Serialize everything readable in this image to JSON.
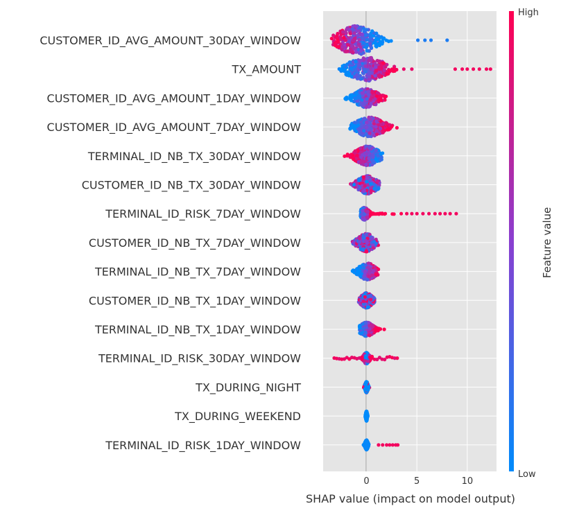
{
  "chart_data": {
    "type": "scatter",
    "subtype": "shap-beeswarm",
    "xlabel": "SHAP value (impact on model output)",
    "xlim": [
      -4.3,
      12.9
    ],
    "xticks": [
      0,
      5,
      10
    ],
    "xtick_labels": [
      "0",
      "5",
      "10"
    ],
    "grid": true,
    "colorbar": {
      "title": "Feature value",
      "high_label": "High",
      "low_label": "Low",
      "low_color": "#008bfb",
      "mid_color": "#8a3fd0",
      "high_color": "#ff0052"
    },
    "background_color": "#e5e5e5",
    "features": [
      {
        "name": "CUSTOMER_ID_AVG_AMOUNT_30DAY_WINDOW",
        "range": [
          -3.5,
          4.2
        ],
        "peak": -1.0,
        "spread": 1.3,
        "peak_width": 21,
        "outliers": [
          {
            "x": 5.1,
            "v": 0.1
          },
          {
            "x": 5.8,
            "v": 0.1
          },
          {
            "x": 6.4,
            "v": 0.1
          },
          {
            "x": 8.0,
            "v": 0.1
          }
        ],
        "trend": "high-negative"
      },
      {
        "name": "TX_AMOUNT",
        "range": [
          -2.8,
          4.5
        ],
        "peak": 0.0,
        "spread": 1.3,
        "peak_width": 17,
        "outliers": [
          {
            "x": 3.7,
            "v": 0.9
          },
          {
            "x": 4.5,
            "v": 0.9
          },
          {
            "x": 8.8,
            "v": 0.95
          },
          {
            "x": 9.5,
            "v": 0.95
          },
          {
            "x": 10.0,
            "v": 0.95
          },
          {
            "x": 10.6,
            "v": 0.95
          },
          {
            "x": 11.2,
            "v": 0.95
          },
          {
            "x": 11.9,
            "v": 0.95
          },
          {
            "x": 12.3,
            "v": 0.95
          }
        ],
        "trend": "high-positive"
      },
      {
        "name": "CUSTOMER_ID_AVG_AMOUNT_1DAY_WINDOW",
        "range": [
          -3.4,
          2.0
        ],
        "peak": 0.0,
        "spread": 0.8,
        "peak_width": 14,
        "outliers": [],
        "trend": "high-positive"
      },
      {
        "name": "CUSTOMER_ID_AVG_AMOUNT_7DAY_WINDOW",
        "range": [
          -1.7,
          3.4
        ],
        "peak": 0.3,
        "spread": 1.0,
        "peak_width": 14,
        "outliers": [],
        "trend": "high-positive"
      },
      {
        "name": "TERMINAL_ID_NB_TX_30DAY_WINDOW",
        "range": [
          -2.2,
          1.6
        ],
        "peak": 0.1,
        "spread": 0.8,
        "peak_width": 14,
        "outliers": [],
        "trend": "high-negative"
      },
      {
        "name": "CUSTOMER_ID_NB_TX_30DAY_WINDOW",
        "range": [
          -1.6,
          1.3
        ],
        "peak": 0.1,
        "spread": 0.7,
        "peak_width": 13,
        "outliers": [],
        "trend": "mixed"
      },
      {
        "name": "TERMINAL_ID_RISK_7DAY_WINDOW",
        "range": [
          -0.6,
          3.5
        ],
        "peak": -0.2,
        "spread": 0.3,
        "peak_width": 9,
        "outliers": [
          {
            "x": 4.0,
            "v": 0.95
          },
          {
            "x": 4.5,
            "v": 0.95
          },
          {
            "x": 5.0,
            "v": 0.95
          },
          {
            "x": 5.6,
            "v": 0.95
          },
          {
            "x": 6.2,
            "v": 0.95
          },
          {
            "x": 6.8,
            "v": 0.95
          },
          {
            "x": 7.3,
            "v": 0.95
          },
          {
            "x": 7.8,
            "v": 0.95
          },
          {
            "x": 8.3,
            "v": 0.95
          },
          {
            "x": 8.9,
            "v": 0.95
          }
        ],
        "trend": "high-positive"
      },
      {
        "name": "CUSTOMER_ID_NB_TX_7DAY_WINDOW",
        "range": [
          -1.4,
          1.2
        ],
        "peak": 0.0,
        "spread": 0.6,
        "peak_width": 13,
        "outliers": [],
        "trend": "mixed"
      },
      {
        "name": "TERMINAL_ID_NB_TX_7DAY_WINDOW",
        "range": [
          -1.6,
          1.2
        ],
        "peak": 0.1,
        "spread": 0.6,
        "peak_width": 12,
        "outliers": [],
        "trend": "high-positive"
      },
      {
        "name": "CUSTOMER_ID_NB_TX_1DAY_WINDOW",
        "range": [
          -0.8,
          0.8
        ],
        "peak": 0.0,
        "spread": 0.4,
        "peak_width": 11,
        "outliers": [],
        "trend": "mixed"
      },
      {
        "name": "TERMINAL_ID_NB_TX_1DAY_WINDOW",
        "range": [
          -0.7,
          1.8
        ],
        "peak": 0.0,
        "spread": 0.5,
        "peak_width": 10,
        "outliers": [],
        "trend": "high-positive"
      },
      {
        "name": "TERMINAL_ID_RISK_30DAY_WINDOW",
        "range": [
          -3.2,
          3.2
        ],
        "peak": 0.0,
        "spread": 0.2,
        "peak_width": 8,
        "outliers": [],
        "trend": "high-spread"
      },
      {
        "name": "TX_DURING_NIGHT",
        "range": [
          -0.8,
          0.5
        ],
        "peak": 0.0,
        "spread": 0.1,
        "peak_width": 8,
        "outliers": [],
        "trend": "binary"
      },
      {
        "name": "TX_DURING_WEEKEND",
        "range": [
          -0.2,
          0.2
        ],
        "peak": 0.0,
        "spread": 0.05,
        "peak_width": 7,
        "outliers": [],
        "trend": "low-only"
      },
      {
        "name": "TERMINAL_ID_RISK_1DAY_WINDOW",
        "range": [
          -0.5,
          0.3
        ],
        "peak": 0.0,
        "spread": 0.1,
        "peak_width": 7,
        "outliers": [
          {
            "x": 1.2,
            "v": 0.95
          },
          {
            "x": 1.6,
            "v": 0.95
          },
          {
            "x": 2.0,
            "v": 0.95
          },
          {
            "x": 2.3,
            "v": 0.95
          },
          {
            "x": 2.6,
            "v": 0.95
          },
          {
            "x": 2.9,
            "v": 0.95
          },
          {
            "x": 3.1,
            "v": 0.95
          }
        ],
        "trend": "low-center-high-right"
      }
    ]
  }
}
